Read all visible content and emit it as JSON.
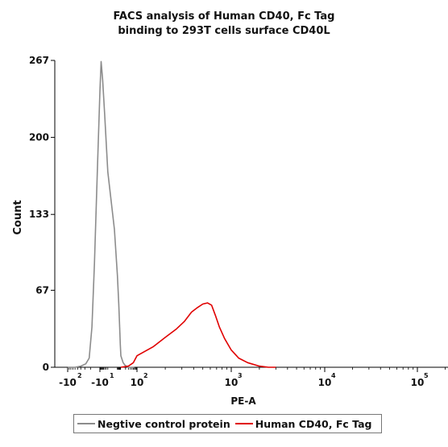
{
  "chart_data": {
    "type": "line",
    "title_lines": [
      "FACS analysis of Human CD40, Fc Tag",
      "binding to 293T cells surface CD40L"
    ],
    "xlabel": "PE-A",
    "ylabel": "Count",
    "x_scale": "biexponential",
    "x_ticks": [
      {
        "base": "-10",
        "exp": "2",
        "value": -100
      },
      {
        "base": "-10",
        "exp": "1",
        "value": -10
      },
      {
        "base": "10",
        "exp": "2",
        "value": 100
      },
      {
        "base": "10",
        "exp": "3",
        "value": 1000
      },
      {
        "base": "10",
        "exp": "4",
        "value": 10000
      },
      {
        "base": "10",
        "exp": "5",
        "value": 100000
      }
    ],
    "y_ticks": [
      0,
      67,
      133,
      200,
      267
    ],
    "ylim": [
      0,
      267
    ],
    "legend": {
      "position": "bottom"
    },
    "series": [
      {
        "name": "Negtive control protein",
        "color": "#8c8c8c",
        "x": [
          -100,
          -60,
          -40,
          -28,
          -22,
          -18,
          -15,
          -12,
          -10,
          -8,
          -6,
          -4,
          -2,
          0,
          2,
          4,
          6,
          8,
          10,
          14,
          18,
          22,
          30,
          45,
          70
        ],
        "y": [
          0,
          0,
          1,
          3,
          8,
          35,
          90,
          175,
          240,
          266,
          250,
          220,
          170,
          120,
          80,
          55,
          35,
          20,
          10,
          4,
          2,
          1,
          0,
          0,
          0
        ]
      },
      {
        "name": "Human CD40, Fc Tag",
        "color": "#e00000",
        "x": [
          10,
          30,
          60,
          100,
          150,
          200,
          260,
          320,
          380,
          440,
          500,
          560,
          620,
          680,
          750,
          850,
          1000,
          1200,
          1500,
          2000,
          2500,
          3000
        ],
        "y": [
          0,
          1,
          4,
          10,
          18,
          26,
          33,
          40,
          48,
          52,
          55,
          56,
          54,
          45,
          35,
          25,
          15,
          8,
          4,
          1,
          0,
          0
        ]
      }
    ]
  }
}
